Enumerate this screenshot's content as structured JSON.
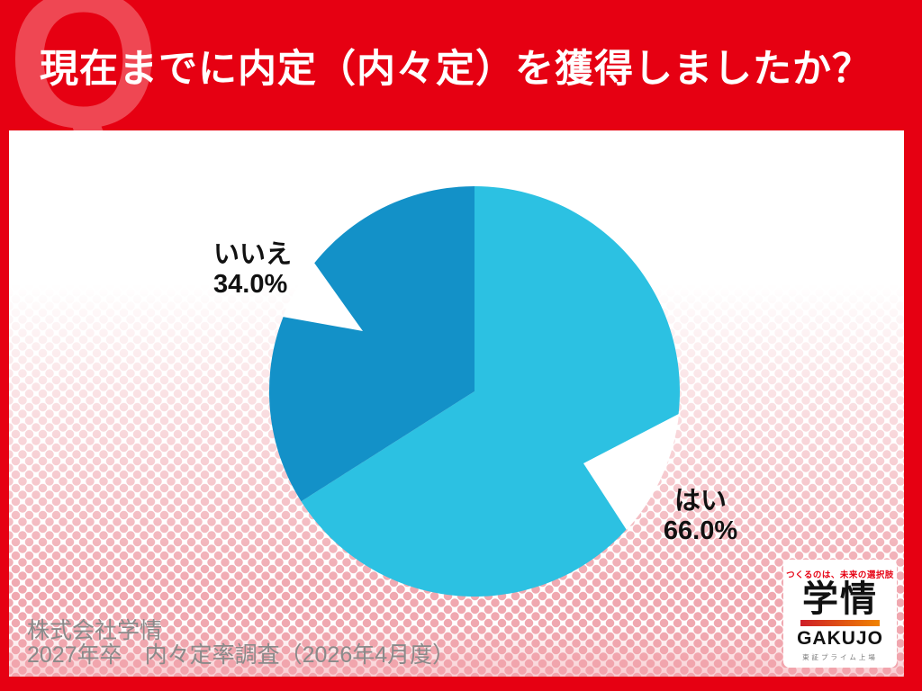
{
  "header": {
    "q_letter": "Q",
    "title": "現在までに内定（内々定）を獲得しましたか？"
  },
  "chart_data": {
    "type": "pie",
    "title": "現在までに内定（内々定）を獲得しましたか？",
    "categories": [
      "はい",
      "いいえ"
    ],
    "values": [
      66.0,
      34.0
    ],
    "value_labels": [
      "66.0%",
      "34.0%"
    ],
    "colors": [
      "#2cc1e2",
      "#1391c8"
    ],
    "start_angle_deg": 0,
    "direction": "clockwise",
    "legend_position": "none",
    "label_style": "external callout notches"
  },
  "pie_labels": {
    "no_name": "いいえ",
    "no_value": "34.0%",
    "yes_name": "はい",
    "yes_value": "66.0%"
  },
  "footer": {
    "company": "株式会社学情",
    "survey": "2027年卒　内々定率調査（2026年4月度）"
  },
  "logo": {
    "tagline": "つくるのは、未来の選択肢",
    "kanji": "学情",
    "name": "GAKUJO",
    "listing": "東証プライム上場"
  },
  "colors": {
    "brand_red": "#e60012",
    "q_watermark_red": "#ef4753",
    "pie_yes_blue": "#2cc1e2",
    "pie_no_blue": "#1391c8",
    "halftone_pink": "#f0a8b0",
    "footer_gray": "#8a8a8a"
  }
}
